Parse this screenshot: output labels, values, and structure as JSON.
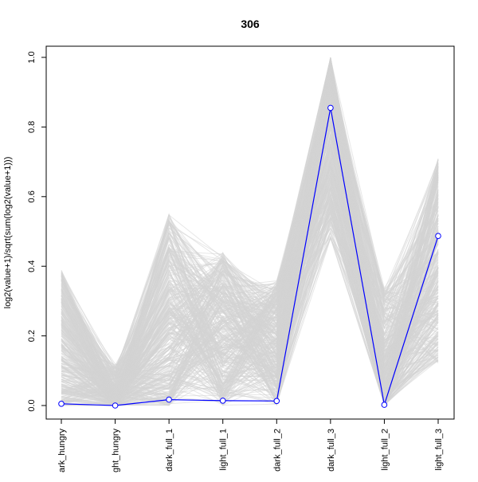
{
  "chart_data": {
    "type": "line",
    "title": "306",
    "xlabel": "",
    "ylabel": "log2(value+1)/sqrt(sum(log2(value+1)))",
    "categories": [
      "dark_hungry",
      "light_hungry",
      "dark_full_1",
      "light_full_1",
      "dark_full_2",
      "dark_full_3",
      "light_full_2",
      "light_full_3"
    ],
    "category_labels_visible": [
      "ark_hungry",
      "ght_hungry",
      "dark_full_1",
      "light_full_1",
      "dark_full_2",
      "dark_full_3",
      "light_full_2",
      "light_full_3"
    ],
    "ylim": [
      0,
      1.0
    ],
    "yticks": [
      "0.0",
      "0.2",
      "0.4",
      "0.6",
      "0.8",
      "1.0"
    ],
    "grid": false,
    "highlight_series": {
      "color": "#0000ff",
      "values": [
        0.005,
        0.0,
        0.017,
        0.014,
        0.013,
        0.855,
        0.002,
        0.487
      ]
    },
    "background_series_color": "#d3d3d3",
    "background_series_envelope": {
      "min": [
        0.0,
        0.0,
        0.0,
        0.0,
        0.0,
        0.42,
        0.0,
        0.12
      ],
      "max": [
        0.39,
        0.12,
        0.55,
        0.44,
        0.36,
        1.0,
        0.34,
        0.71
      ]
    }
  }
}
